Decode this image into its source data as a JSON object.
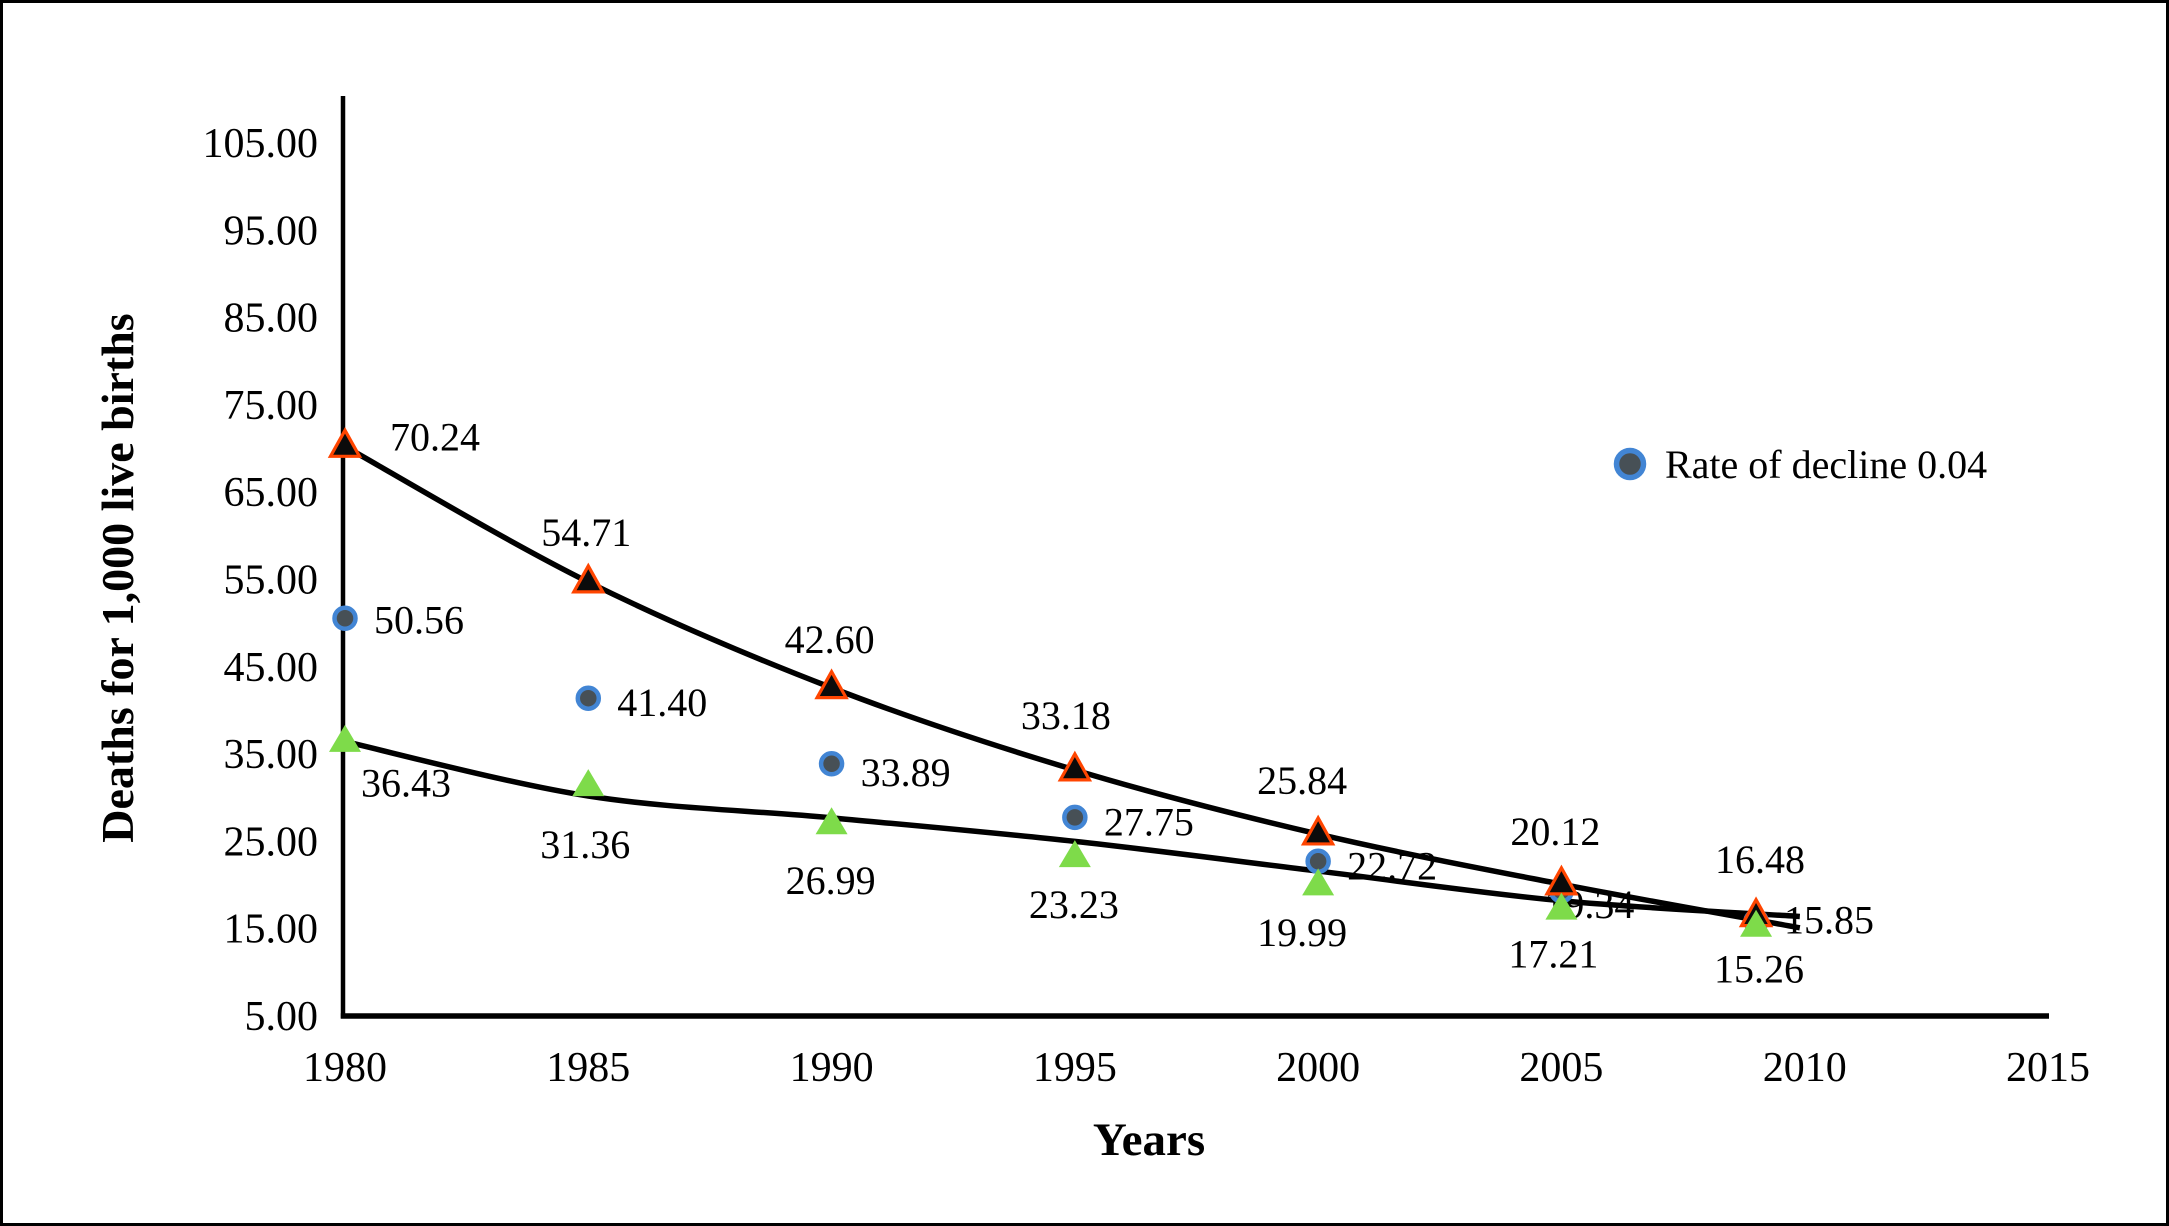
{
  "chart_data": {
    "type": "scatter",
    "title": "",
    "xlabel": "Years",
    "ylabel": "Deaths for 1,000 live births",
    "xlim": [
      1980,
      2015
    ],
    "ylim": [
      5,
      110
    ],
    "grid": false,
    "x_tick_labels": [
      "1980",
      "1985",
      "1990",
      "1995",
      "2000",
      "2005",
      "2010",
      "2015"
    ],
    "y_tick_labels": [
      "105.00",
      "95.00",
      "85.00",
      "75.00",
      "65.00",
      "55.00",
      "45.00",
      "35.00",
      "25.00",
      "15.00",
      "5.00"
    ],
    "legend": {
      "label": "Rate of decline 0.04",
      "position": "upper-right",
      "marker": "circle"
    },
    "colors": {
      "trend_line": "#000000",
      "axis": "#000000",
      "upper_marker_fill": "#0b0b0b",
      "upper_marker_stroke": "#ff4500",
      "middle_marker_fill": "#475056",
      "middle_marker_stroke": "#4285d4",
      "lower_marker_fill": "#7edb4a"
    },
    "x": [
      1980,
      1985,
      1990,
      1995,
      2000,
      2005,
      2009
    ],
    "series": [
      {
        "name": "upper-triangle-series",
        "marker": "triangle-black-red-edge",
        "values": [
          70.24,
          54.71,
          42.6,
          33.18,
          25.84,
          20.12,
          16.48
        ],
        "labels": [
          "70.24",
          "54.71",
          "42.60",
          "33.18",
          "25.84",
          "20.12",
          "16.48"
        ],
        "trend": {
          "x": [
            1980,
            1985,
            1990,
            1995,
            2000,
            2005,
            2009.9
          ],
          "values": [
            70.24,
            54.71,
            42.6,
            33.18,
            25.84,
            20.1,
            15.1
          ]
        }
      },
      {
        "name": "Rate of decline 0.04",
        "marker": "circle-gray-blue-edge",
        "values": [
          50.56,
          41.4,
          33.89,
          27.75,
          22.72,
          19.34,
          15.85
        ],
        "labels": [
          "50.56",
          "41.40",
          "33.89",
          "27.75",
          "22.72",
          "19.34",
          "15.85"
        ],
        "trend": null
      },
      {
        "name": "lower-triangle-series",
        "marker": "triangle-green",
        "values": [
          36.43,
          31.36,
          26.99,
          23.23,
          19.99,
          17.21,
          15.26
        ],
        "labels": [
          "36.43",
          "31.36",
          "26.99",
          "23.23",
          "19.99",
          "17.21",
          "15.26"
        ],
        "trend": {
          "x": [
            1980,
            1985,
            1990,
            1995,
            2000,
            2005,
            2009.9
          ],
          "values": [
            36.43,
            30.2,
            27.7,
            25.0,
            21.6,
            18.2,
            16.4
          ]
        }
      }
    ]
  }
}
